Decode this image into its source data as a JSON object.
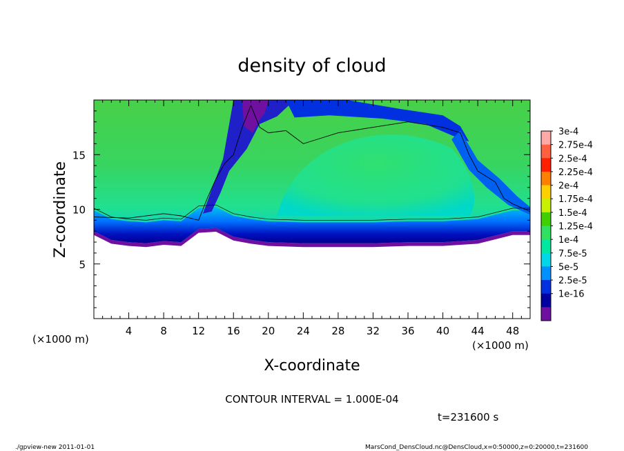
{
  "chart_data": {
    "type": "heatmap",
    "title": "density of cloud",
    "xlabel": "X-coordinate",
    "ylabel": "Z-coordinate",
    "x_unit_label": "(×1000 m)",
    "x_unit_label_left": "(×1000 m)",
    "xlim": [
      0,
      50
    ],
    "ylim": [
      0,
      20
    ],
    "x_ticks": [
      4,
      8,
      12,
      16,
      20,
      24,
      28,
      32,
      36,
      40,
      44,
      48
    ],
    "y_ticks": [
      5,
      10,
      15
    ],
    "colorbar_labels": [
      "3e-4",
      "2.75e-4",
      "2.5e-4",
      "2.25e-4",
      "2e-4",
      "1.75e-4",
      "1.5e-4",
      "1.25e-4",
      "1e-4",
      "7.5e-5",
      "5e-5",
      "2.5e-5",
      "1e-16"
    ],
    "colorbar_colors": [
      "#ffa8a8",
      "#ff6040",
      "#ff2000",
      "#ff8000",
      "#ffd000",
      "#c8f000",
      "#40d000",
      "#30e060",
      "#00e8a0",
      "#00d8e8",
      "#0090ff",
      "#0030e0",
      "#0000a0",
      "#7010a0"
    ],
    "contour_interval": "CONTOUR INTERVAL = 1.000E-04",
    "time_label": "t=231600 s",
    "footer_left": "./gpview-new   2011-01-01",
    "footer_right": "MarsCond_DensCloud.nc@DensCloud,x=0:50000,z=0:20000,t=231600",
    "cloud_base": [
      [
        0,
        8.0
      ],
      [
        2,
        7.2
      ],
      [
        4,
        7.0
      ],
      [
        6,
        6.9
      ],
      [
        8,
        7.1
      ],
      [
        10,
        7.0
      ],
      [
        12,
        8.2
      ],
      [
        14,
        8.3
      ],
      [
        16,
        7.5
      ],
      [
        18,
        7.2
      ],
      [
        20,
        7.0
      ],
      [
        24,
        6.9
      ],
      [
        28,
        6.9
      ],
      [
        32,
        6.9
      ],
      [
        36,
        7.0
      ],
      [
        40,
        7.0
      ],
      [
        44,
        7.2
      ],
      [
        46,
        7.6
      ],
      [
        48,
        8.0
      ],
      [
        50,
        8.0
      ]
    ],
    "contour_1e-4": [
      [
        0,
        9.3
      ],
      [
        4,
        9.2
      ],
      [
        8,
        9.6
      ],
      [
        10,
        9.4
      ],
      [
        12,
        9.0
      ],
      [
        13,
        11.0
      ],
      [
        14,
        12.8
      ],
      [
        15,
        14.2
      ],
      [
        16,
        15.0
      ],
      [
        17,
        17.5
      ],
      [
        18,
        19.5
      ],
      [
        19,
        17.5
      ],
      [
        20,
        17.0
      ],
      [
        22,
        17.2
      ],
      [
        24,
        16.0
      ],
      [
        26,
        16.5
      ],
      [
        28,
        17.0
      ],
      [
        32,
        17.5
      ],
      [
        36,
        18.0
      ],
      [
        40,
        17.5
      ],
      [
        42,
        17.0
      ],
      [
        43,
        15.0
      ],
      [
        44,
        13.5
      ],
      [
        46,
        12.5
      ],
      [
        47,
        11.0
      ],
      [
        48,
        10.5
      ],
      [
        50,
        9.8
      ]
    ]
  }
}
